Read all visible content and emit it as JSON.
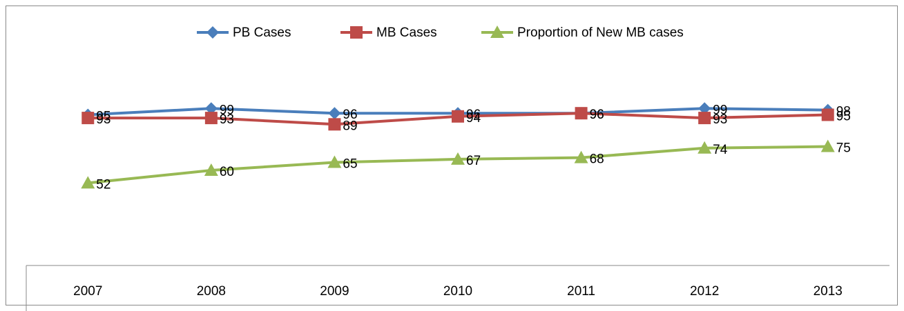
{
  "chart_data": {
    "type": "line",
    "categories": [
      "2007",
      "2008",
      "2009",
      "2010",
      "2011",
      "2012",
      "2013"
    ],
    "series": [
      {
        "name": "PB Cases",
        "color": "#4a7ebb",
        "marker": "diamond",
        "values": [
          95,
          99,
          96,
          96,
          96,
          99,
          98
        ]
      },
      {
        "name": "MB Cases",
        "color": "#be4b48",
        "marker": "square",
        "values": [
          93,
          93,
          89,
          94,
          96,
          93,
          95
        ]
      },
      {
        "name": "Proportion of New MB cases",
        "color": "#98b954",
        "marker": "triangle",
        "values": [
          52,
          60,
          65,
          67,
          68,
          74,
          75
        ]
      }
    ],
    "ylim": [
      0,
      120
    ],
    "legend": "top",
    "data_labels": true
  }
}
